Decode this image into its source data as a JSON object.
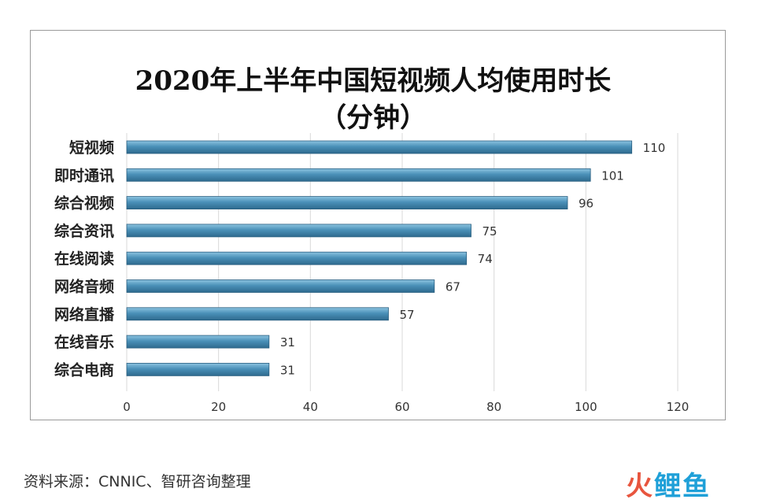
{
  "chart_data": {
    "type": "bar",
    "orientation": "horizontal",
    "title_line1": "2020年上半年中国短视频人均使用时长",
    "title_line2": "（分钟）",
    "categories": [
      "短视频",
      "即时通讯",
      "综合视频",
      "综合资讯",
      "在线阅读",
      "网络音频",
      "网络直播",
      "在线音乐",
      "综合电商"
    ],
    "values": [
      110,
      101,
      96,
      75,
      74,
      67,
      57,
      31,
      31
    ],
    "xlim": [
      0,
      120
    ],
    "xticks": [
      0,
      20,
      40,
      60,
      80,
      100,
      120
    ],
    "grid": true,
    "bar_color": "#4a90b8"
  },
  "source": "资料来源：CNNIC、智研咨询整理",
  "watermark": {
    "part1": "火",
    "part2": "鲤鱼"
  }
}
